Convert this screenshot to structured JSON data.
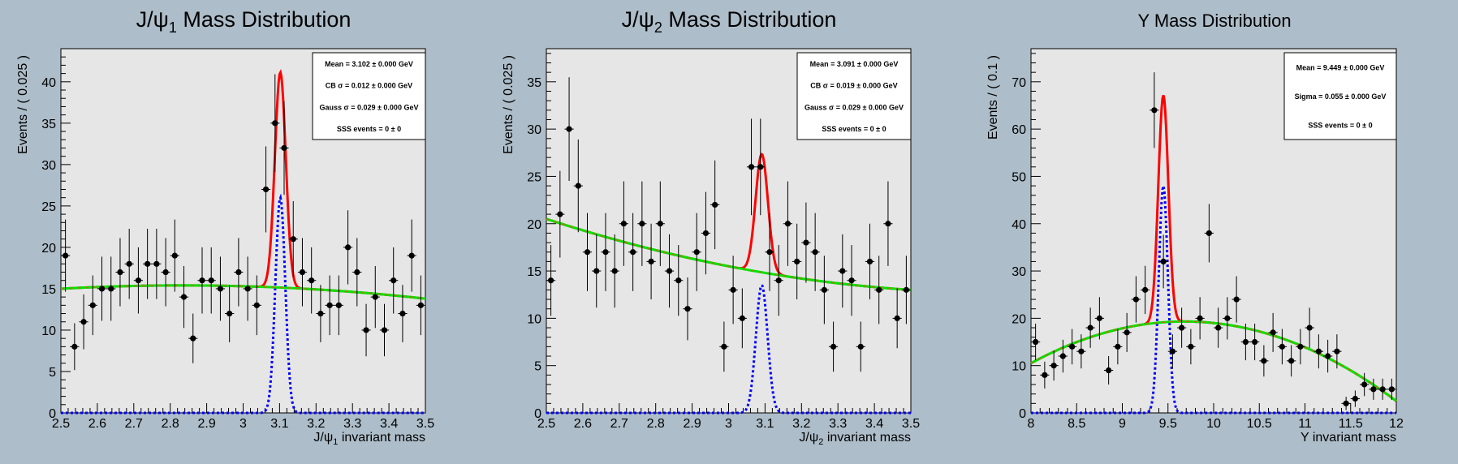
{
  "background_color": "#adbdc9",
  "colors": {
    "frame": "#e6e6e6",
    "data": "#000000",
    "total_fit": "#ff0000",
    "signal": "#0000ff",
    "background_fit": "#00e600",
    "background_fit_dash": "#cc6600"
  },
  "chart_data": [
    {
      "type": "scatter",
      "title": {
        "pre": "J/ψ",
        "sub": "1",
        "post": " Mass Distribution"
      },
      "xlabel": {
        "pre": "J/ψ",
        "sub": "1",
        "post": " invariant mass"
      },
      "ylabel": "Events / ( 0.025 )",
      "xlim": [
        2.5,
        3.5
      ],
      "ylim": [
        0,
        44
      ],
      "xticks": [
        2.5,
        2.6,
        2.7,
        2.8,
        2.9,
        3,
        3.1,
        3.2,
        3.3,
        3.4,
        3.5
      ],
      "xtick_labels": [
        "2.5",
        "2.6",
        "2.7",
        "2.8",
        "2.9",
        "3",
        "3.1",
        "3.2",
        "3.3",
        "3.4",
        "3.5"
      ],
      "yticks": [
        0,
        5,
        10,
        15,
        20,
        25,
        30,
        35,
        40
      ],
      "ytick_labels": [
        "0",
        "5",
        "10",
        "15",
        "20",
        "25",
        "30",
        "35",
        "40"
      ],
      "grid": false,
      "legend_placement": "top-right",
      "stats": [
        "Mean = 3.102 ± 0.000 GeV",
        "CB σ = 0.012 ± 0.000 GeV",
        "Gauss σ = 0.029 ± 0.000 GeV",
        "SSS events = 0 ± 0"
      ],
      "points": {
        "x": [
          2.5125,
          2.5375,
          2.5625,
          2.5875,
          2.6125,
          2.6375,
          2.6625,
          2.6875,
          2.7125,
          2.7375,
          2.7625,
          2.7875,
          2.8125,
          2.8375,
          2.8625,
          2.8875,
          2.9125,
          2.9375,
          2.9625,
          2.9875,
          3.0125,
          3.0375,
          3.0625,
          3.0875,
          3.1125,
          3.1375,
          3.1625,
          3.1875,
          3.2125,
          3.2375,
          3.2625,
          3.2875,
          3.3125,
          3.3375,
          3.3625,
          3.3875,
          3.4125,
          3.4375,
          3.4625,
          3.4875
        ],
        "y": [
          19,
          8,
          11,
          13,
          15,
          15,
          17,
          18,
          16,
          18,
          18,
          17,
          19,
          14,
          9,
          16,
          16,
          15,
          12,
          17,
          15,
          13,
          27,
          35,
          32,
          21,
          17,
          16,
          12,
          13,
          13,
          20,
          17,
          10,
          14,
          10,
          16,
          12,
          19,
          13
        ]
      },
      "curves": {
        "background": {
          "name": "",
          "shape": "linear",
          "params": [
            15.0,
            15.3,
            13.8
          ]
        },
        "signal": {
          "name": "",
          "shape": "gauss",
          "mean": 3.102,
          "sigma": 0.0135,
          "peak": 26.0
        },
        "total": {
          "name": "",
          "shape": "background+gauss",
          "mean": 3.102,
          "sigma": 0.015,
          "peak": 26.0
        }
      }
    },
    {
      "type": "scatter",
      "title": {
        "pre": "J/ψ",
        "sub": "2",
        "post": " Mass Distribution"
      },
      "xlabel": {
        "pre": "J/ψ",
        "sub": "2",
        "post": " invariant mass"
      },
      "ylabel": "Events / ( 0.025 )",
      "xlim": [
        2.5,
        3.5
      ],
      "ylim": [
        0,
        38.5
      ],
      "xticks": [
        2.5,
        2.6,
        2.7,
        2.8,
        2.9,
        3,
        3.1,
        3.2,
        3.3,
        3.4,
        3.5
      ],
      "xtick_labels": [
        "2.5",
        "2.6",
        "2.7",
        "2.8",
        "2.9",
        "3",
        "3.1",
        "3.2",
        "3.3",
        "3.4",
        "3.5"
      ],
      "yticks": [
        0,
        5,
        10,
        15,
        20,
        25,
        30,
        35
      ],
      "ytick_labels": [
        "0",
        "5",
        "10",
        "15",
        "20",
        "25",
        "30",
        "35"
      ],
      "grid": false,
      "legend_placement": "top-right",
      "stats": [
        "Mean = 3.091 ± 0.000 GeV",
        "CB σ = 0.019 ± 0.000 GeV",
        "Gauss σ = 0.029 ± 0.000 GeV",
        "SSS events = 0 ± 0"
      ],
      "points": {
        "x": [
          2.5125,
          2.5375,
          2.5625,
          2.5875,
          2.6125,
          2.6375,
          2.6625,
          2.6875,
          2.7125,
          2.7375,
          2.7625,
          2.7875,
          2.8125,
          2.8375,
          2.8625,
          2.8875,
          2.9125,
          2.9375,
          2.9625,
          2.9875,
          3.0125,
          3.0375,
          3.0625,
          3.0875,
          3.1125,
          3.1375,
          3.1625,
          3.1875,
          3.2125,
          3.2375,
          3.2625,
          3.2875,
          3.3125,
          3.3375,
          3.3625,
          3.3875,
          3.4125,
          3.4375,
          3.4625,
          3.4875
        ],
        "y": [
          14,
          21,
          30,
          24,
          17,
          15,
          17,
          15,
          20,
          17,
          20,
          16,
          20,
          15,
          14,
          11,
          17,
          19,
          22,
          7,
          13,
          10,
          26,
          26,
          17,
          14,
          20,
          16,
          18,
          17,
          13,
          7,
          15,
          14,
          7,
          16,
          13,
          20,
          10,
          13
        ]
      },
      "curves": {
        "background": {
          "name": "",
          "shape": "quadratic",
          "params": [
            20.5,
            15.5,
            13.0
          ]
        },
        "signal": {
          "name": "",
          "shape": "gauss",
          "mean": 3.091,
          "sigma": 0.016,
          "peak": 13.5
        },
        "total": {
          "name": "",
          "shape": "background+gauss",
          "mean": 3.091,
          "sigma": 0.017,
          "peak": 12.5
        }
      }
    },
    {
      "type": "scatter",
      "title": {
        "pre": "Υ",
        "sub": "",
        "post": " Mass Distribution"
      },
      "xlabel": {
        "pre": "Υ",
        "sub": "",
        "post": " invariant mass"
      },
      "ylabel": "Events / ( 0.1 )",
      "xlim": [
        8,
        12
      ],
      "ylim": [
        0,
        77
      ],
      "xticks": [
        8,
        8.5,
        9,
        9.5,
        10,
        10.5,
        11,
        11.5,
        12
      ],
      "xtick_labels": [
        "8",
        "8.5",
        "9",
        "9.5",
        "10",
        "10.5",
        "11",
        "11.5",
        "12"
      ],
      "yticks": [
        0,
        10,
        20,
        30,
        40,
        50,
        60,
        70
      ],
      "ytick_labels": [
        "0",
        "10",
        "20",
        "30",
        "40",
        "50",
        "60",
        "70"
      ],
      "grid": false,
      "legend_placement": "top-right",
      "stats": [
        "Mean = 9.449 ± 0.000 GeV",
        "Sigma = 0.055 ± 0.000 GeV",
        "SSS events = 0 ± 0"
      ],
      "points": {
        "x": [
          8.05,
          8.15,
          8.25,
          8.35,
          8.45,
          8.55,
          8.65,
          8.75,
          8.85,
          8.95,
          9.05,
          9.15,
          9.25,
          9.35,
          9.45,
          9.55,
          9.65,
          9.75,
          9.85,
          9.95,
          10.05,
          10.15,
          10.25,
          10.35,
          10.45,
          10.55,
          10.65,
          10.75,
          10.85,
          10.95,
          11.05,
          11.15,
          11.25,
          11.35,
          11.45,
          11.55,
          11.65,
          11.75,
          11.85,
          11.95
        ],
        "y": [
          15,
          8,
          10,
          12,
          14,
          13,
          18,
          20,
          9,
          14,
          17,
          24,
          26,
          64,
          32,
          13,
          18,
          14,
          20,
          38,
          18,
          20,
          24,
          15,
          15,
          11,
          17,
          14,
          11,
          14,
          18,
          13,
          12,
          13,
          2,
          3,
          6,
          5,
          5,
          5
        ]
      },
      "curves": {
        "background": {
          "name": "",
          "shape": "quadratic",
          "params": [
            10.5,
            19.0,
            2.5
          ]
        },
        "signal": {
          "name": "",
          "shape": "gauss",
          "mean": 9.449,
          "sigma": 0.05,
          "peak": 48.0
        },
        "total": {
          "name": "",
          "shape": "background+gauss",
          "mean": 9.449,
          "sigma": 0.055,
          "peak": 48.0
        }
      }
    }
  ]
}
